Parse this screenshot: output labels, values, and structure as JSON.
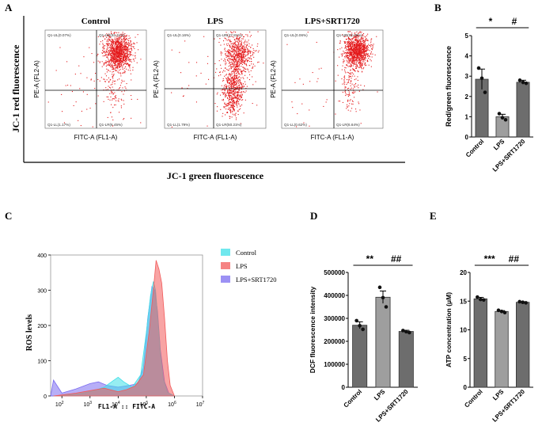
{
  "colors": {
    "dot_red": "#e41a1c",
    "bar_dark": "#6d6d6d",
    "bar_mid": "#9e9e9e",
    "bar_light": "#bdbdbd",
    "hist_control": "#40e0e8",
    "hist_lps": "#f25a5a",
    "hist_srt": "#7b6cf0",
    "axis": "#000000"
  },
  "chart_data": [
    {
      "panel": "A",
      "type": "scatter",
      "group_titles": [
        "Control",
        "LPS",
        "LPS+SRT1720"
      ],
      "ylabel": "JC-1 red fluorescence",
      "xlabel": "JC-1 green fluorescence",
      "plot_xlabel": "FITC-A (FL1-A)",
      "plot_ylabel": "PE-A (FL2-A)",
      "quadrants": [
        {
          "ul": "Q1-UL(0.07%)",
          "ur": "Q1-UR(92.11%)",
          "ll": "Q1-LL(1.17%)",
          "lr": "Q1-LR(6.45%)"
        },
        {
          "ul": "Q1-UL(0.16%)",
          "ur": "Q1-UR(47.81%)",
          "ll": "Q1-LL(1.79%)",
          "lr": "Q1-LR(50.21%)"
        },
        {
          "ul": "Q1-UL(0.06%)",
          "ur": "Q1-UR(92.68%)",
          "ll": "Q1-LL(0.62%)",
          "lr": "Q1-LR(6.64%)"
        }
      ]
    },
    {
      "panel": "B",
      "type": "bar",
      "categories": [
        "Control",
        "LPS",
        "LPS+SRT1720"
      ],
      "values": [
        2.85,
        1.0,
        2.7
      ],
      "errors": [
        0.5,
        0.12,
        0.1
      ],
      "points": [
        [
          3.4,
          2.9,
          2.2
        ],
        [
          1.15,
          0.95,
          0.85
        ],
        [
          2.8,
          2.7,
          2.65
        ]
      ],
      "ylabel": "Red/green fluorescence",
      "ylim": [
        0,
        5
      ],
      "yticks": [
        "0",
        "1",
        "2",
        "3",
        "4",
        "5"
      ],
      "significance": [
        {
          "from": 0,
          "to": 1,
          "label": "*"
        },
        {
          "from": 1,
          "to": 2,
          "label": "#"
        }
      ]
    },
    {
      "panel": "C",
      "type": "area",
      "ylabel": "ROS levels",
      "xlabel": "FL1-A :: FITC-A",
      "ylim": [
        0,
        400
      ],
      "yticks": [
        "0",
        "100",
        "200",
        "300",
        "400"
      ],
      "xticks": [
        {
          "base": "10",
          "exp": "2"
        },
        {
          "base": "10",
          "exp": "3"
        },
        {
          "base": "10",
          "exp": "4"
        },
        {
          "base": "10",
          "exp": "5"
        },
        {
          "base": "10",
          "exp": "6"
        },
        {
          "base": "10",
          "exp": "7"
        }
      ],
      "series": [
        {
          "name": "Control",
          "x": [
            1.7,
            2.0,
            2.5,
            3.0,
            3.5,
            3.8,
            4.0,
            4.2,
            4.5,
            4.8,
            5.0,
            5.15,
            5.25,
            5.33,
            5.4,
            5.5,
            5.6,
            5.75,
            6.0
          ],
          "y": [
            0,
            2,
            5,
            12,
            25,
            42,
            53,
            40,
            25,
            60,
            180,
            285,
            325,
            300,
            230,
            120,
            50,
            10,
            0
          ]
        },
        {
          "name": "LPS",
          "x": [
            1.7,
            2.0,
            2.5,
            3.0,
            3.5,
            4.0,
            4.3,
            4.6,
            4.9,
            5.1,
            5.25,
            5.35,
            5.45,
            5.55,
            5.65,
            5.75,
            5.85,
            6.0
          ],
          "y": [
            0,
            3,
            8,
            15,
            22,
            12,
            18,
            28,
            60,
            180,
            300,
            385,
            360,
            320,
            220,
            100,
            30,
            0
          ]
        },
        {
          "name": "LPS+SRT1720",
          "x": [
            1.6,
            1.7,
            2.0,
            2.5,
            3.0,
            3.3,
            3.6,
            4.0,
            4.4,
            4.7,
            4.9,
            5.05,
            5.2,
            5.3,
            5.4,
            5.5,
            5.65,
            5.8,
            6.0
          ],
          "y": [
            0,
            45,
            8,
            20,
            35,
            40,
            30,
            25,
            30,
            35,
            80,
            220,
            310,
            300,
            240,
            130,
            40,
            8,
            0
          ]
        }
      ]
    },
    {
      "panel": "D",
      "type": "bar",
      "categories": [
        "Control",
        "LPS",
        "LPS+SRT1720"
      ],
      "values": [
        270000,
        392000,
        243000
      ],
      "errors": [
        15000,
        27000,
        5000
      ],
      "points": [
        [
          290000,
          268000,
          252000
        ],
        [
          435000,
          390000,
          350000
        ],
        [
          247000,
          242000,
          238000
        ]
      ],
      "ylabel": "DCF fluorescence intensity",
      "ylim": [
        0,
        500000
      ],
      "yticks": [
        "0",
        "100000",
        "200000",
        "300000",
        "400000",
        "500000"
      ],
      "significance": [
        {
          "from": 0,
          "to": 1,
          "label": "**"
        },
        {
          "from": 1,
          "to": 2,
          "label": "##"
        }
      ]
    },
    {
      "panel": "E",
      "type": "bar",
      "categories": [
        "Control",
        "LPS",
        "LPS+SRT1720"
      ],
      "values": [
        15.4,
        13.2,
        14.8
      ],
      "errors": [
        0.25,
        0.15,
        0.1
      ],
      "points": [
        [
          15.7,
          15.3,
          15.2
        ],
        [
          13.4,
          13.2,
          13.0
        ],
        [
          14.9,
          14.8,
          14.7
        ]
      ],
      "ylabel": "ATP concentration (μM)",
      "ylim": [
        0,
        20
      ],
      "yticks": [
        "0",
        "5",
        "10",
        "15",
        "20"
      ],
      "significance": [
        {
          "from": 0,
          "to": 1,
          "label": "***"
        },
        {
          "from": 1,
          "to": 2,
          "label": "##"
        }
      ]
    }
  ],
  "panel_labels": [
    "A",
    "B",
    "C",
    "D",
    "E"
  ]
}
